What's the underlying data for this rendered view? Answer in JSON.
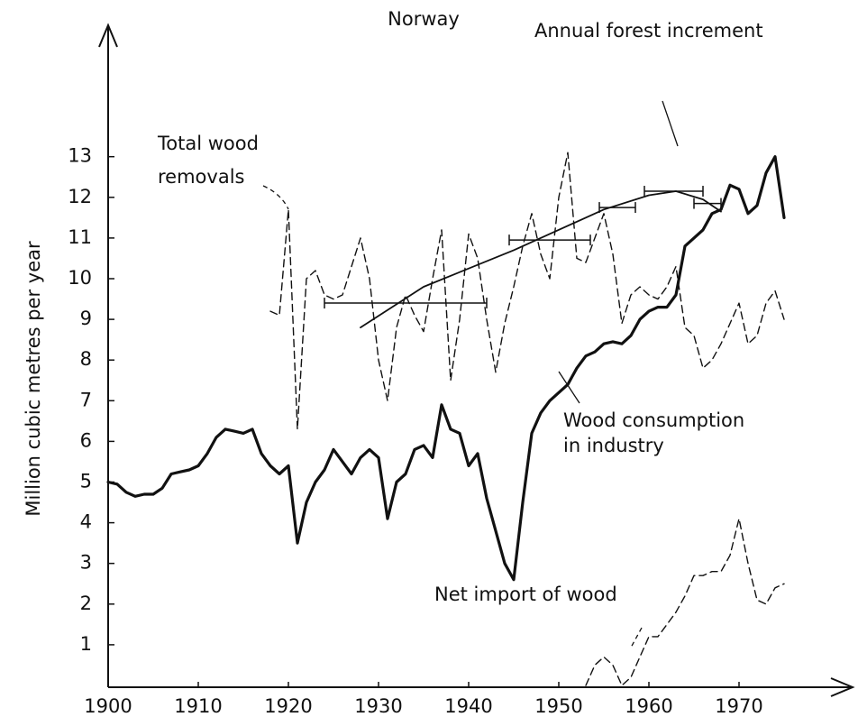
{
  "chart_data": {
    "type": "line",
    "title": "Norway",
    "y_label": "Million cubic metres per year",
    "xlim": [
      1900,
      1982
    ],
    "ylim": [
      0,
      16
    ],
    "xticks": [
      1900,
      1910,
      1920,
      1930,
      1940,
      1950,
      1960,
      1970
    ],
    "yticks": [
      1,
      2,
      3,
      4,
      5,
      6,
      7,
      8,
      9,
      10,
      11,
      12,
      13
    ],
    "series": [
      {
        "name": [
          "Wood consumption",
          "in industry"
        ],
        "color": "#111111",
        "style": "thick",
        "x": [
          1900,
          1901,
          1902,
          1903,
          1904,
          1905,
          1906,
          1907,
          1908,
          1909,
          1910,
          1911,
          1912,
          1913,
          1914,
          1915,
          1916,
          1917,
          1918,
          1919,
          1920,
          1921,
          1922,
          1923,
          1924,
          1925,
          1926,
          1927,
          1928,
          1929,
          1930,
          1931,
          1932,
          1933,
          1934,
          1935,
          1936,
          1937,
          1938,
          1939,
          1940,
          1941,
          1942,
          1943,
          1944,
          1945,
          1946,
          1947,
          1948,
          1949,
          1950,
          1951,
          1952,
          1953,
          1954,
          1955,
          1956,
          1957,
          1958,
          1959,
          1960,
          1961,
          1962,
          1963,
          1964,
          1965,
          1966,
          1967,
          1968,
          1969,
          1970,
          1971,
          1972,
          1973,
          1974,
          1975
        ],
        "values": [
          5.0,
          4.95,
          4.75,
          4.65,
          4.7,
          4.7,
          4.85,
          5.2,
          5.25,
          5.3,
          5.4,
          5.7,
          6.1,
          6.3,
          6.25,
          6.2,
          6.3,
          5.7,
          5.4,
          5.2,
          5.4,
          3.5,
          4.5,
          5.0,
          5.3,
          5.8,
          5.5,
          5.2,
          5.6,
          5.8,
          5.6,
          4.1,
          5.0,
          5.2,
          5.8,
          5.9,
          5.6,
          6.9,
          6.3,
          6.2,
          5.4,
          5.7,
          4.6,
          3.8,
          3.0,
          2.6,
          4.5,
          6.2,
          6.7,
          7.0,
          7.2,
          7.4,
          7.8,
          8.1,
          8.2,
          8.4,
          8.45,
          8.4,
          8.6,
          9.0,
          9.2,
          9.3,
          9.3,
          9.6,
          10.8,
          11.0,
          11.2,
          11.6,
          11.7,
          12.3,
          12.2,
          11.6,
          11.8,
          12.6,
          13.0,
          11.5
        ]
      },
      {
        "name": [
          "Total wood",
          "removals"
        ],
        "color": "#111111",
        "style": "dashed",
        "x": [
          1918,
          1919,
          1920,
          1921,
          1922,
          1923,
          1924,
          1925,
          1926,
          1927,
          1928,
          1929,
          1930,
          1931,
          1932,
          1933,
          1934,
          1935,
          1936,
          1937,
          1938,
          1939,
          1940,
          1941,
          1942,
          1943,
          1944,
          1945,
          1946,
          1947,
          1948,
          1949,
          1950,
          1951,
          1952,
          1953,
          1954,
          1955,
          1956,
          1957,
          1958,
          1959,
          1960,
          1961,
          1962,
          1963,
          1964,
          1965,
          1966,
          1967,
          1968,
          1969,
          1970,
          1971,
          1972,
          1973,
          1974,
          1975
        ],
        "values": [
          9.2,
          9.1,
          11.7,
          6.3,
          10.0,
          10.2,
          9.6,
          9.5,
          9.6,
          10.3,
          11.0,
          10.0,
          8.0,
          7.0,
          8.8,
          9.6,
          9.1,
          8.7,
          10.0,
          11.2,
          7.5,
          9.0,
          11.1,
          10.5,
          9.0,
          7.7,
          8.9,
          9.8,
          10.8,
          11.6,
          10.6,
          10.0,
          12.0,
          13.1,
          10.5,
          10.4,
          11.0,
          11.6,
          10.6,
          8.9,
          9.6,
          9.8,
          9.6,
          9.5,
          9.8,
          10.3,
          8.8,
          8.6,
          7.8,
          8.0,
          8.4,
          8.9,
          9.4,
          8.4,
          8.6,
          9.4,
          9.7,
          9.0
        ]
      },
      {
        "name": [
          "Net import of wood"
        ],
        "color": "#111111",
        "style": "dashed",
        "x": [
          1953,
          1954,
          1955,
          1956,
          1957,
          1958,
          1959,
          1960,
          1961,
          1962,
          1963,
          1964,
          1965,
          1966,
          1967,
          1968,
          1969,
          1970,
          1971,
          1972,
          1973,
          1974,
          1975
        ],
        "values": [
          0,
          0.5,
          0.7,
          0.5,
          0,
          0.2,
          0.7,
          1.2,
          1.2,
          1.5,
          1.8,
          2.2,
          2.7,
          2.7,
          2.8,
          2.8,
          3.2,
          4.1,
          3.0,
          2.1,
          2.0,
          2.4,
          2.5
        ]
      },
      {
        "name": [
          "Annual forest increment"
        ],
        "color": "#111111",
        "style": "thin",
        "x": [
          1928,
          1935,
          1945,
          1955,
          1960,
          1963,
          1966,
          1968
        ],
        "values": [
          8.8,
          9.8,
          10.7,
          11.7,
          12.05,
          12.15,
          11.95,
          11.65
        ],
        "ranges": [
          {
            "value": 9.4,
            "from": 1924,
            "to": 1942
          },
          {
            "value": 10.95,
            "from": 1944.5,
            "to": 1953.5
          },
          {
            "value": 11.75,
            "from": 1954.5,
            "to": 1958.5
          },
          {
            "value": 12.15,
            "from": 1959.5,
            "to": 1966
          },
          {
            "value": 11.85,
            "from": 1965,
            "to": 1968
          }
        ]
      }
    ]
  }
}
